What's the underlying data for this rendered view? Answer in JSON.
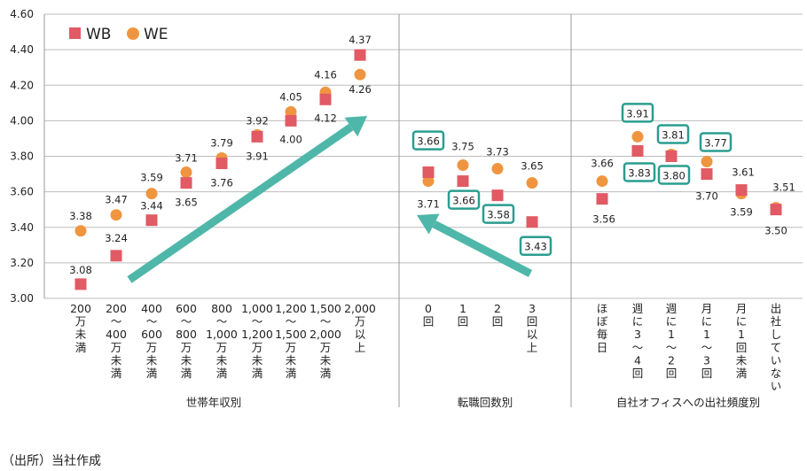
{
  "chart_data": {
    "type": "scatter",
    "ylim": [
      3.0,
      4.6
    ],
    "yticks": [
      "3.00",
      "3.20",
      "3.40",
      "3.60",
      "3.80",
      "4.00",
      "4.20",
      "4.40",
      "4.60"
    ],
    "grid": true,
    "legend": {
      "position": "top-left",
      "entries": [
        "WB",
        "WE"
      ]
    },
    "colors": {
      "WB": "#e15a64",
      "WE": "#ef9540",
      "arrow": "#4fb7a9",
      "box": "#2a9d8f"
    },
    "series": [
      {
        "name": "WB",
        "marker": "square"
      },
      {
        "name": "WE",
        "marker": "circle"
      }
    ],
    "groups": [
      {
        "name": "世帯年収別",
        "categories": [
          {
            "lines": [
              "200",
              "万",
              "未",
              "満"
            ],
            "WB": "3.08",
            "WE": "3.38"
          },
          {
            "lines": [
              "200",
              "～",
              "400",
              "万",
              "未",
              "満"
            ],
            "WB": "3.24",
            "WE": "3.47"
          },
          {
            "lines": [
              "400",
              "～",
              "600",
              "万",
              "未",
              "満"
            ],
            "WB": "3.44",
            "WE": "3.59"
          },
          {
            "lines": [
              "600",
              "～",
              "800",
              "万",
              "未",
              "満"
            ],
            "WB": "3.65",
            "WE": "3.71"
          },
          {
            "lines": [
              "800",
              "～",
              "1,000",
              "万",
              "未",
              "満"
            ],
            "WB": "3.76",
            "WE": "3.79"
          },
          {
            "lines": [
              "1,000",
              "～",
              "1,200",
              "万",
              "未",
              "満"
            ],
            "WB": "3.91",
            "WE": "3.92"
          },
          {
            "lines": [
              "1,200",
              "～",
              "1,500",
              "万",
              "未",
              "満"
            ],
            "WB": "4.00",
            "WE": "4.05"
          },
          {
            "lines": [
              "1,500",
              "～",
              "2,000",
              "万",
              "未",
              "満"
            ],
            "WB": "4.12",
            "WE": "4.16"
          },
          {
            "lines": [
              "2,000",
              "万",
              "以",
              "上"
            ],
            "WB": "4.37",
            "WE": "4.26"
          }
        ]
      },
      {
        "name": "転職回数別",
        "categories": [
          {
            "lines": [
              "0",
              "回"
            ],
            "WB": "3.71",
            "WE": "3.66"
          },
          {
            "lines": [
              "1",
              "回"
            ],
            "WB": "3.66",
            "WE": "3.75"
          },
          {
            "lines": [
              "2",
              "回"
            ],
            "WB": "3.58",
            "WE": "3.73"
          },
          {
            "lines": [
              "3",
              "回",
              "以",
              "上"
            ],
            "WB": "3.43",
            "WE": "3.65"
          }
        ]
      },
      {
        "name": "自社オフィスへの出社頻度別",
        "categories": [
          {
            "lines": [
              "ほ",
              "ぼ",
              "毎",
              "日"
            ],
            "WB": "3.56",
            "WE": "3.66"
          },
          {
            "lines": [
              "週",
              "に",
              "3",
              "～",
              "4",
              "回"
            ],
            "WB": "3.83",
            "WE": "3.91"
          },
          {
            "lines": [
              "週",
              "に",
              "1",
              "～",
              "2",
              "回"
            ],
            "WB": "3.80",
            "WE": "3.81"
          },
          {
            "lines": [
              "月",
              "に",
              "1",
              "～",
              "3",
              "回"
            ],
            "WB": "3.70",
            "WE": "3.77"
          },
          {
            "lines": [
              "月",
              "に",
              "1",
              "回",
              "未",
              "満"
            ],
            "WB": "3.61",
            "WE": "3.59"
          },
          {
            "lines": [
              "出",
              "社",
              "し",
              "て",
              "い",
              "な",
              "い"
            ],
            "WB": "3.50",
            "WE": "3.51"
          }
        ]
      }
    ]
  },
  "source": "（出所）当社作成"
}
